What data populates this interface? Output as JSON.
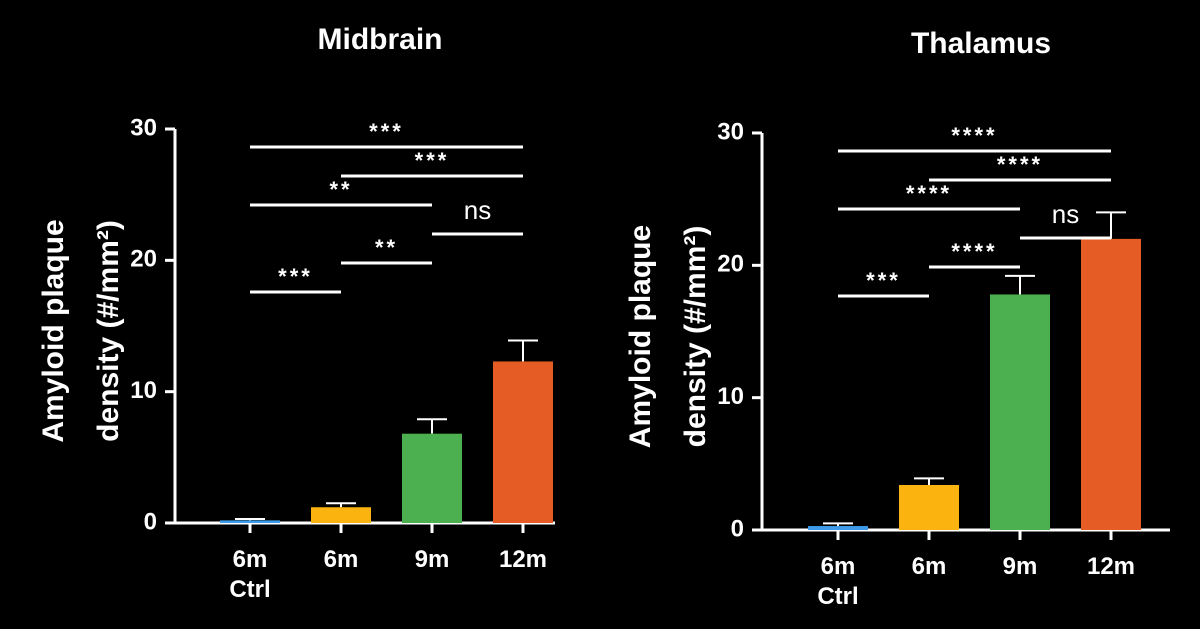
{
  "chart_data": [
    {
      "type": "bar",
      "title": "Midbrain",
      "y_label": [
        "Amyloid plaque",
        "density (#/mm²)"
      ],
      "categories": [
        "6m Ctrl",
        "6m",
        "9m",
        "12m"
      ],
      "values": [
        0.2,
        1.2,
        6.8,
        12.3
      ],
      "errors": [
        0.1,
        0.3,
        1.1,
        1.6
      ],
      "colors": [
        "#3d9be9",
        "#fbb40f",
        "#4caf50",
        "#e55d25"
      ],
      "ylim": [
        0,
        30
      ],
      "yticks": [
        0,
        10,
        20,
        30
      ],
      "significance": [
        {
          "text": "***",
          "from": 0,
          "to": 3
        },
        {
          "text": "***",
          "from": 1,
          "to": 3
        },
        {
          "text": "**",
          "from": 0,
          "to": 2
        },
        {
          "text": "ns",
          "from": 2,
          "to": 3
        },
        {
          "text": "**",
          "from": 1,
          "to": 2
        },
        {
          "text": "***",
          "from": 0,
          "to": 1
        }
      ]
    },
    {
      "type": "bar",
      "title": "Thalamus",
      "y_label": [
        "Amyloid plaque",
        "density (#/mm²)"
      ],
      "categories": [
        "6m Ctrl",
        "6m",
        "9m",
        "12m"
      ],
      "values": [
        0.3,
        3.4,
        17.8,
        22.0
      ],
      "errors": [
        0.2,
        0.5,
        1.4,
        2.0
      ],
      "colors": [
        "#3d9be9",
        "#fbb40f",
        "#4caf50",
        "#e55d25"
      ],
      "ylim": [
        0,
        30
      ],
      "yticks": [
        0,
        10,
        20,
        30
      ],
      "significance": [
        {
          "text": "****",
          "from": 0,
          "to": 3
        },
        {
          "text": "****",
          "from": 1,
          "to": 3
        },
        {
          "text": "****",
          "from": 0,
          "to": 2
        },
        {
          "text": "ns",
          "from": 2,
          "to": 3
        },
        {
          "text": "****",
          "from": 1,
          "to": 2
        },
        {
          "text": "***",
          "from": 0,
          "to": 1
        }
      ]
    }
  ]
}
